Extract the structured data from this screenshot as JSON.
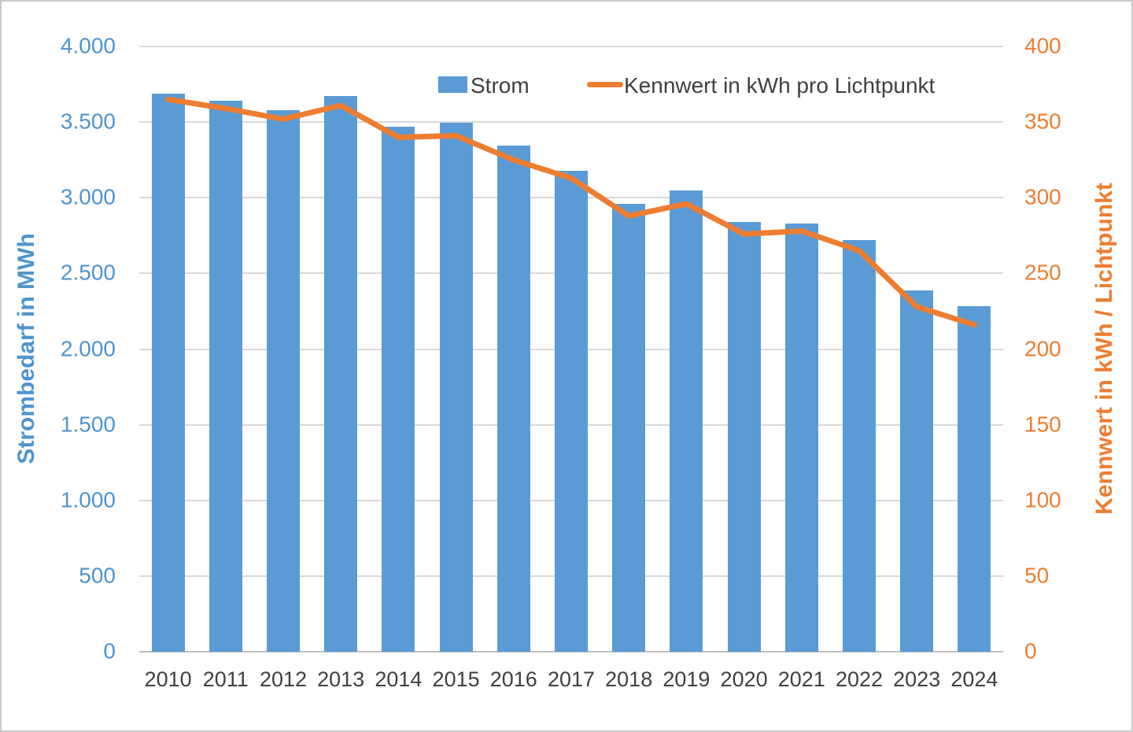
{
  "chart_data": {
    "type": "bar+line-combo",
    "categories": [
      "2010",
      "2011",
      "2012",
      "2013",
      "2014",
      "2015",
      "2016",
      "2017",
      "2018",
      "2019",
      "2020",
      "2021",
      "2022",
      "2023",
      "2024"
    ],
    "series": [
      {
        "name": "Strom",
        "type": "bar",
        "axis": "left",
        "color": "#5b9bd5",
        "values": [
          3690,
          3640,
          3580,
          3670,
          3470,
          3495,
          3345,
          3180,
          2960,
          3050,
          2840,
          2830,
          2720,
          2385,
          2285
        ]
      },
      {
        "name": "Kennwert in kWh pro Lichtpunkt",
        "type": "line",
        "axis": "right",
        "color": "#ed7d31",
        "values": [
          365,
          359,
          352,
          361,
          340,
          341,
          325,
          313,
          288,
          296,
          276,
          278,
          265,
          228,
          216
        ]
      }
    ],
    "left_axis": {
      "title": "Strombedarf in MWh",
      "min": 0,
      "max": 4000,
      "step": 500,
      "tick_labels": [
        "0",
        "500",
        "1.000",
        "1.500",
        "2.000",
        "2.500",
        "3.000",
        "3.500",
        "4.000"
      ]
    },
    "right_axis": {
      "title": "Kennwert in kWh / Lichtpunkt",
      "min": 0,
      "max": 400,
      "step": 50,
      "tick_labels": [
        "0",
        "50",
        "100",
        "150",
        "200",
        "250",
        "300",
        "350",
        "400"
      ]
    },
    "legend_position": "top-center",
    "grid": true,
    "colors": {
      "bar_blue": "#5b9bd5",
      "line_orange": "#ed7d31",
      "axis_text_blue": "#4e94ce",
      "axis_text_orange": "#ed7d31",
      "category_text": "#404040",
      "gridline": "#d9d9d9"
    }
  }
}
